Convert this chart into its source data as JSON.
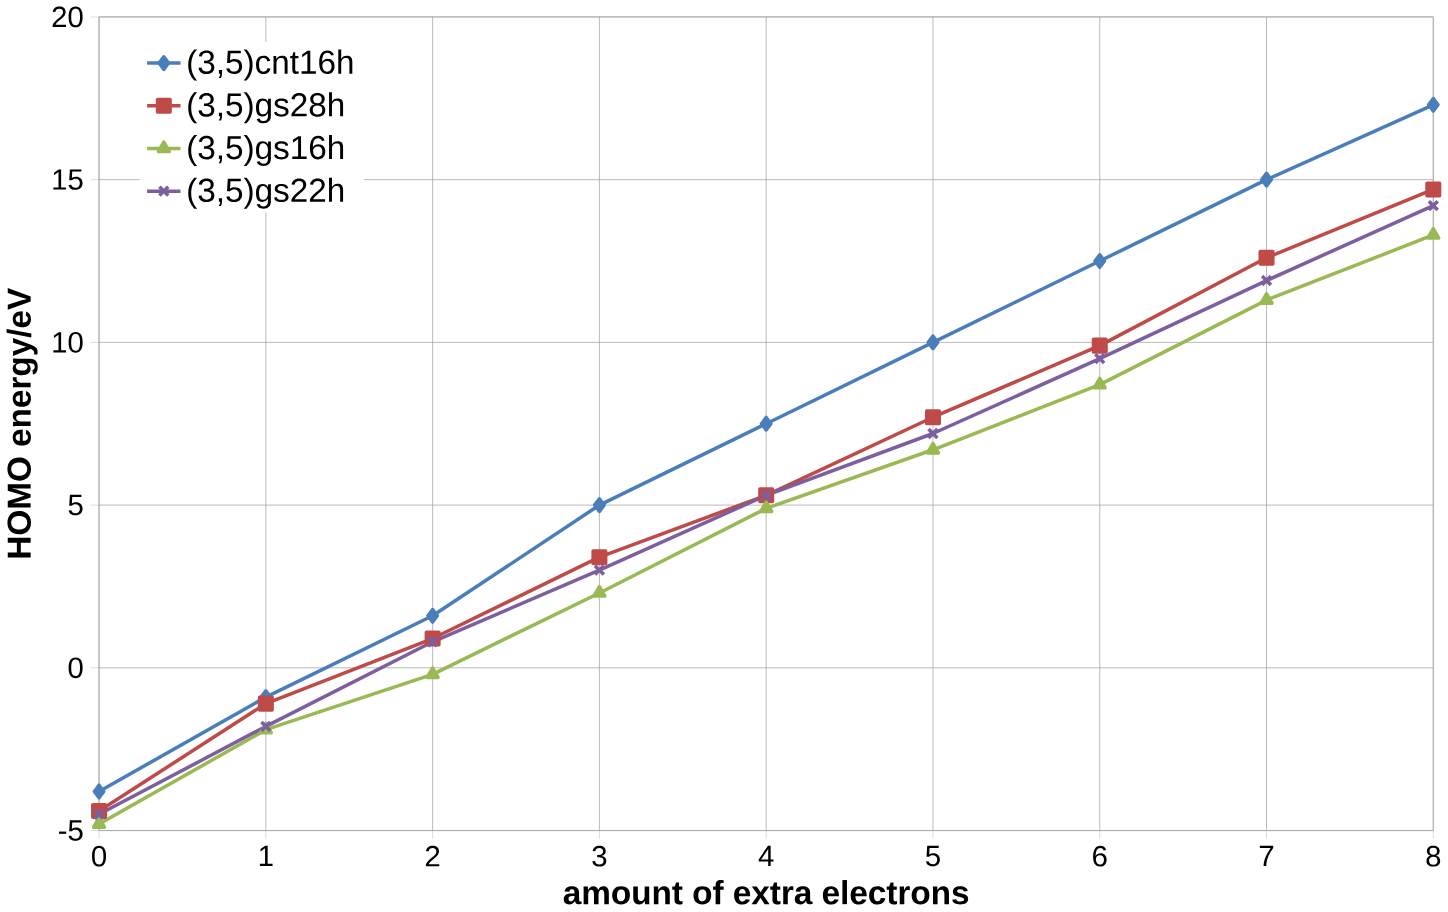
{
  "chart_data": {
    "type": "line",
    "xlabel": "amount of extra electrons",
    "ylabel": "HOMO energy/eV",
    "x": [
      0,
      1,
      2,
      3,
      4,
      5,
      6,
      7,
      8
    ],
    "series": [
      {
        "name": "(3,5)cnt16h",
        "color": "#4a7ebb",
        "marker": "diamond",
        "values": [
          -3.8,
          -0.9,
          1.6,
          5.0,
          7.5,
          10.0,
          12.5,
          15.0,
          17.3
        ]
      },
      {
        "name": "(3,5)gs28h",
        "color": "#be4b48",
        "marker": "square",
        "values": [
          -4.4,
          -1.1,
          0.9,
          3.4,
          5.3,
          7.7,
          9.9,
          12.6,
          14.7
        ]
      },
      {
        "name": "(3,5)gs16h",
        "color": "#98b954",
        "marker": "triangle",
        "values": [
          -4.8,
          -1.9,
          -0.2,
          2.3,
          4.9,
          6.7,
          8.7,
          11.3,
          13.3
        ]
      },
      {
        "name": "(3,5)gs22h",
        "color": "#7d5fa0",
        "marker": "cross",
        "values": [
          -4.5,
          -1.8,
          0.8,
          3.0,
          5.3,
          7.2,
          9.5,
          11.9,
          14.2
        ]
      }
    ],
    "xlim": [
      0,
      8
    ],
    "xticks": [
      0,
      1,
      2,
      3,
      4,
      5,
      6,
      7,
      8
    ],
    "ylim": [
      -5,
      20
    ],
    "yticks": [
      -5,
      0,
      5,
      10,
      15,
      20
    ],
    "grid": true,
    "legend": "top left",
    "line_style": "solid"
  }
}
